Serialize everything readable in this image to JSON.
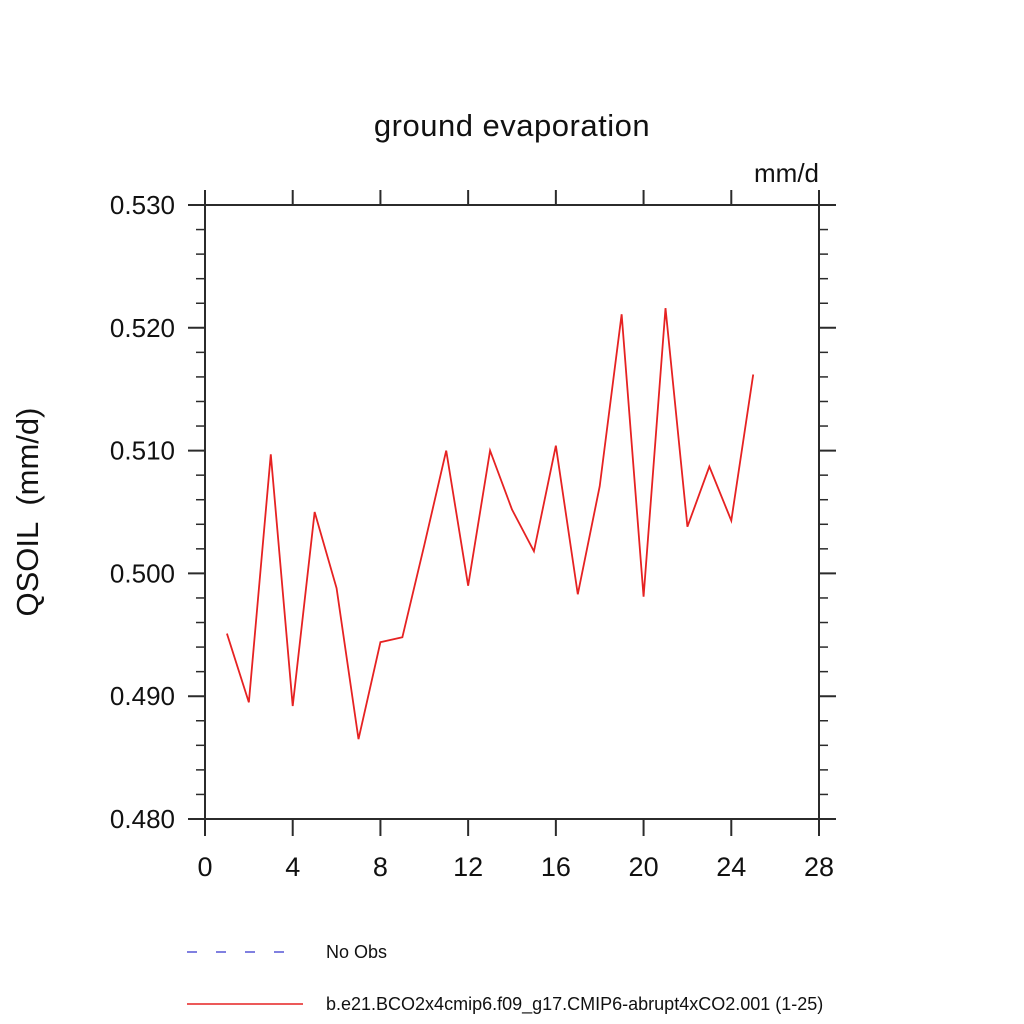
{
  "page": {
    "background": "#ffffff"
  },
  "chart_data": {
    "type": "line",
    "title": "ground evaporation",
    "units_label": "mm/d",
    "ylabel": "QSOIL  (mm/d)",
    "xlabel": "",
    "x": [
      1,
      2,
      3,
      4,
      5,
      6,
      7,
      8,
      9,
      10,
      11,
      12,
      13,
      14,
      15,
      16,
      17,
      18,
      19,
      20,
      21,
      22,
      23,
      24,
      25
    ],
    "series": [
      {
        "name": "b.e21.BCO2x4cmip6.f09_g17.CMIP6-abrupt4xCO2.001 (1-25)",
        "color": "#e62222",
        "style": "solid",
        "values": [
          0.4951,
          0.4895,
          0.5097,
          0.4892,
          0.505,
          0.4988,
          0.4865,
          0.4944,
          0.4948,
          0.5023,
          0.51,
          0.499,
          0.51,
          0.5052,
          0.5018,
          0.5104,
          0.4983,
          0.5071,
          0.5211,
          0.4981,
          0.5216,
          0.5038,
          0.5087,
          0.5043,
          0.5162
        ]
      }
    ],
    "xlim": [
      0,
      28
    ],
    "ylim": [
      0.48,
      0.53
    ],
    "xticks": [
      0,
      4,
      8,
      12,
      16,
      20,
      24,
      28
    ],
    "yticks": [
      0.48,
      0.49,
      0.5,
      0.51,
      0.52,
      0.53
    ],
    "y_minor_step": 0.002,
    "ytick_label_decimals": 3,
    "grid": false,
    "axis_color": "#2b2b2b",
    "legend_position": "bottom-left",
    "legend": [
      {
        "label": "No Obs",
        "color": "#8080e0",
        "style": "dashed"
      },
      {
        "label": "b.e21.BCO2x4cmip6.f09_g17.CMIP6-abrupt4xCO2.001 (1-25)",
        "color": "#e62222",
        "style": "solid"
      }
    ]
  }
}
